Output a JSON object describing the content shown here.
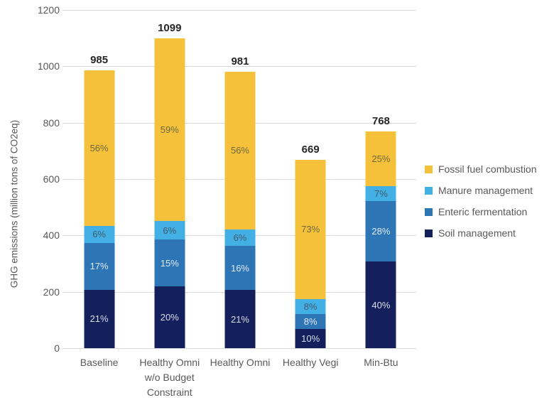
{
  "chart_data": {
    "type": "bar",
    "subtype": "stacked",
    "title": "",
    "xlabel": "",
    "ylabel": "GHG emissions (million tons of CO2eq)",
    "ylim": [
      0,
      1200
    ],
    "yticks": [
      0,
      200,
      400,
      600,
      800,
      1000,
      1200
    ],
    "grid": true,
    "categories": [
      "Baseline",
      "Healthy Omni\nw/o Budget\nConstraint",
      "Healthy Omni",
      "Healthy Vegi",
      "Min-Btu"
    ],
    "totals": [
      985,
      1099,
      981,
      669,
      768
    ],
    "series": [
      {
        "name": "Soil management",
        "color": "#13205c",
        "label_color": "#d8dde8",
        "percents": [
          21,
          20,
          21,
          10,
          40
        ]
      },
      {
        "name": "Enteric fermentation",
        "color": "#2e75b6",
        "label_color": "#deebf7",
        "percents": [
          17,
          15,
          16,
          8,
          28
        ]
      },
      {
        "name": "Manure management",
        "color": "#42b0e5",
        "label_color": "#44596b",
        "percents": [
          6,
          6,
          6,
          8,
          7
        ]
      },
      {
        "name": "Fossil fuel combustion",
        "color": "#f5c13b",
        "label_color": "#6e6840",
        "percents": [
          56,
          59,
          56,
          73,
          25
        ]
      }
    ],
    "legend": {
      "position": "right",
      "entries": [
        "Fossil fuel combustion",
        "Manure management",
        "Enteric fermentation",
        "Soil management"
      ]
    }
  }
}
